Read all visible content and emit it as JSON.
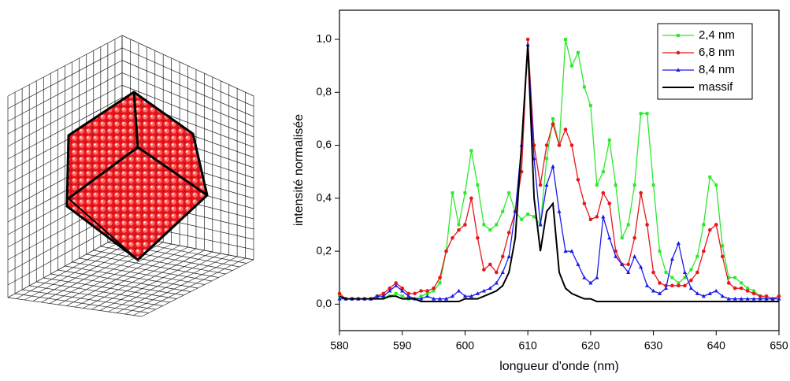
{
  "chart_data": {
    "type": "line",
    "x_label": "longueur d'onde (nm)",
    "y_label": "intensité normalisée",
    "x": [
      580,
      581,
      582,
      583,
      584,
      585,
      586,
      587,
      588,
      589,
      590,
      591,
      592,
      593,
      594,
      595,
      596,
      597,
      598,
      599,
      600,
      601,
      602,
      603,
      604,
      605,
      606,
      607,
      608,
      609,
      610,
      611,
      612,
      613,
      614,
      615,
      616,
      617,
      618,
      619,
      620,
      621,
      622,
      623,
      624,
      625,
      626,
      627,
      628,
      629,
      630,
      631,
      632,
      633,
      634,
      635,
      636,
      637,
      638,
      639,
      640,
      641,
      642,
      643,
      644,
      645,
      646,
      647,
      648,
      649,
      650
    ],
    "series": [
      {
        "name": "2,4 nm",
        "color": "#2ee82e",
        "marker": "square",
        "values": [
          0.03,
          0.02,
          0.02,
          0.02,
          0.02,
          0.02,
          0.03,
          0.03,
          0.03,
          0.04,
          0.03,
          0.02,
          0.02,
          0.03,
          0.04,
          0.05,
          0.08,
          0.2,
          0.42,
          0.3,
          0.42,
          0.58,
          0.45,
          0.3,
          0.28,
          0.3,
          0.35,
          0.42,
          0.35,
          0.32,
          0.34,
          0.33,
          0.3,
          0.55,
          0.7,
          0.6,
          1.0,
          0.9,
          0.95,
          0.82,
          0.75,
          0.45,
          0.5,
          0.62,
          0.45,
          0.25,
          0.3,
          0.45,
          0.72,
          0.72,
          0.45,
          0.2,
          0.12,
          0.1,
          0.08,
          0.1,
          0.13,
          0.18,
          0.3,
          0.48,
          0.45,
          0.22,
          0.1,
          0.1,
          0.08,
          0.06,
          0.05,
          0.03,
          0.02,
          0.02,
          0.03
        ]
      },
      {
        "name": "6,8 nm",
        "color": "#e8161b",
        "marker": "circle",
        "values": [
          0.04,
          0.02,
          0.02,
          0.02,
          0.02,
          0.02,
          0.03,
          0.04,
          0.06,
          0.08,
          0.06,
          0.04,
          0.04,
          0.05,
          0.05,
          0.06,
          0.1,
          0.2,
          0.25,
          0.28,
          0.3,
          0.4,
          0.25,
          0.13,
          0.15,
          0.12,
          0.18,
          0.27,
          0.35,
          0.5,
          1.0,
          0.6,
          0.45,
          0.6,
          0.68,
          0.6,
          0.66,
          0.6,
          0.47,
          0.38,
          0.32,
          0.33,
          0.42,
          0.38,
          0.2,
          0.15,
          0.15,
          0.25,
          0.42,
          0.3,
          0.12,
          0.08,
          0.07,
          0.07,
          0.07,
          0.07,
          0.09,
          0.12,
          0.2,
          0.28,
          0.3,
          0.18,
          0.08,
          0.06,
          0.06,
          0.05,
          0.04,
          0.03,
          0.03,
          0.02,
          0.03
        ]
      },
      {
        "name": "8,4 nm",
        "color": "#1a1aee",
        "marker": "triangle",
        "values": [
          0.02,
          0.02,
          0.02,
          0.02,
          0.02,
          0.02,
          0.03,
          0.03,
          0.05,
          0.07,
          0.05,
          0.03,
          0.02,
          0.02,
          0.03,
          0.02,
          0.02,
          0.02,
          0.03,
          0.05,
          0.03,
          0.03,
          0.04,
          0.05,
          0.06,
          0.08,
          0.12,
          0.18,
          0.35,
          0.6,
          0.98,
          0.55,
          0.3,
          0.45,
          0.52,
          0.35,
          0.2,
          0.2,
          0.15,
          0.1,
          0.08,
          0.1,
          0.33,
          0.25,
          0.18,
          0.15,
          0.12,
          0.18,
          0.14,
          0.07,
          0.05,
          0.04,
          0.06,
          0.17,
          0.23,
          0.12,
          0.06,
          0.04,
          0.03,
          0.04,
          0.05,
          0.03,
          0.02,
          0.02,
          0.02,
          0.02,
          0.02,
          0.02,
          0.02,
          0.02,
          0.02
        ]
      },
      {
        "name": "massif",
        "color": "#000000",
        "marker": "none",
        "values": [
          0.03,
          0.02,
          0.02,
          0.02,
          0.02,
          0.02,
          0.02,
          0.02,
          0.03,
          0.03,
          0.02,
          0.02,
          0.02,
          0.01,
          0.01,
          0.01,
          0.01,
          0.01,
          0.01,
          0.01,
          0.02,
          0.02,
          0.02,
          0.03,
          0.04,
          0.05,
          0.07,
          0.12,
          0.25,
          0.6,
          0.98,
          0.4,
          0.2,
          0.35,
          0.38,
          0.12,
          0.06,
          0.04,
          0.03,
          0.02,
          0.02,
          0.01,
          0.01,
          0.01,
          0.01,
          0.01,
          0.01,
          0.01,
          0.01,
          0.01,
          0.01,
          0.01,
          0.01,
          0.01,
          0.01,
          0.01,
          0.01,
          0.01,
          0.01,
          0.01,
          0.01,
          0.01,
          0.01,
          0.01,
          0.01,
          0.01,
          0.01,
          0.01,
          0.01,
          0.01,
          0.01
        ]
      }
    ],
    "xlim": [
      580,
      650
    ],
    "xticks": [
      580,
      590,
      600,
      610,
      620,
      630,
      640,
      650
    ],
    "ylim": [
      -0.1,
      1.11
    ],
    "yticks": [
      {
        "value": 0,
        "label": "0,0"
      },
      {
        "value": 0.2,
        "label": "0,2"
      },
      {
        "value": 0.4,
        "label": "0,4"
      },
      {
        "value": 0.6,
        "label": "0,6"
      },
      {
        "value": 0.8,
        "label": "0,8"
      },
      {
        "value": 1.0,
        "label": "1,0"
      }
    ],
    "legend": "upper right"
  }
}
